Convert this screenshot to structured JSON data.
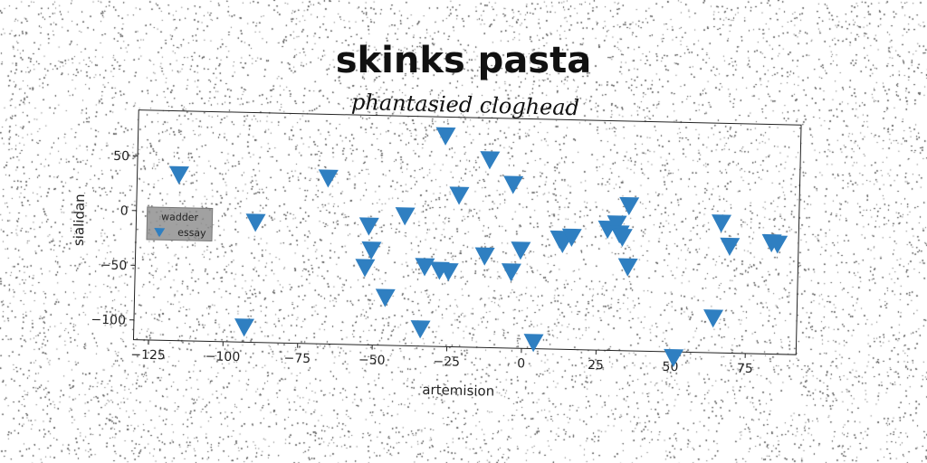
{
  "chart_data": {
    "type": "scatter",
    "title": "skinks pasta",
    "subtitle": "phantasied cloghead",
    "xlabel": "artemision",
    "ylabel": "sialidan",
    "xlim": [
      -130,
      92
    ],
    "ylim": [
      -118,
      92
    ],
    "x_ticks": [
      -125,
      -100,
      -75,
      -50,
      -25,
      0,
      25,
      50,
      75
    ],
    "y_ticks": [
      50,
      0,
      -50,
      -100
    ],
    "grid": false,
    "legend": {
      "title": "wadder",
      "entries": [
        "essay"
      ],
      "placement": "center-left"
    },
    "marker_color": "#2f7fc1",
    "marker": "triangle-down",
    "series": [
      {
        "name": "essay",
        "points": [
          [
            -116,
            34
          ],
          [
            -66,
            34
          ],
          [
            -27,
            75
          ],
          [
            -12,
            54
          ],
          [
            -4,
            32
          ],
          [
            -22,
            21
          ],
          [
            35,
            15
          ],
          [
            -90,
            -8
          ],
          [
            -52,
            -9
          ],
          [
            -40,
            1
          ],
          [
            -51,
            -31
          ],
          [
            -53,
            -47
          ],
          [
            -33,
            -45
          ],
          [
            -28,
            -48
          ],
          [
            -25,
            -49
          ],
          [
            -13,
            -34
          ],
          [
            -4,
            -48
          ],
          [
            -1,
            -28
          ],
          [
            -46,
            -74
          ],
          [
            -93,
            -104
          ],
          [
            -34,
            -102
          ],
          [
            4,
            -112
          ],
          [
            12,
            -17
          ],
          [
            13,
            -21
          ],
          [
            16,
            -15
          ],
          [
            28,
            -7
          ],
          [
            31,
            -2
          ],
          [
            32,
            -11
          ],
          [
            33,
            -14
          ],
          [
            35,
            -41
          ],
          [
            66,
            1
          ],
          [
            69,
            -20
          ],
          [
            83,
            -16
          ],
          [
            85,
            -17
          ],
          [
            64,
            -86
          ],
          [
            51,
            -123
          ]
        ]
      }
    ]
  }
}
